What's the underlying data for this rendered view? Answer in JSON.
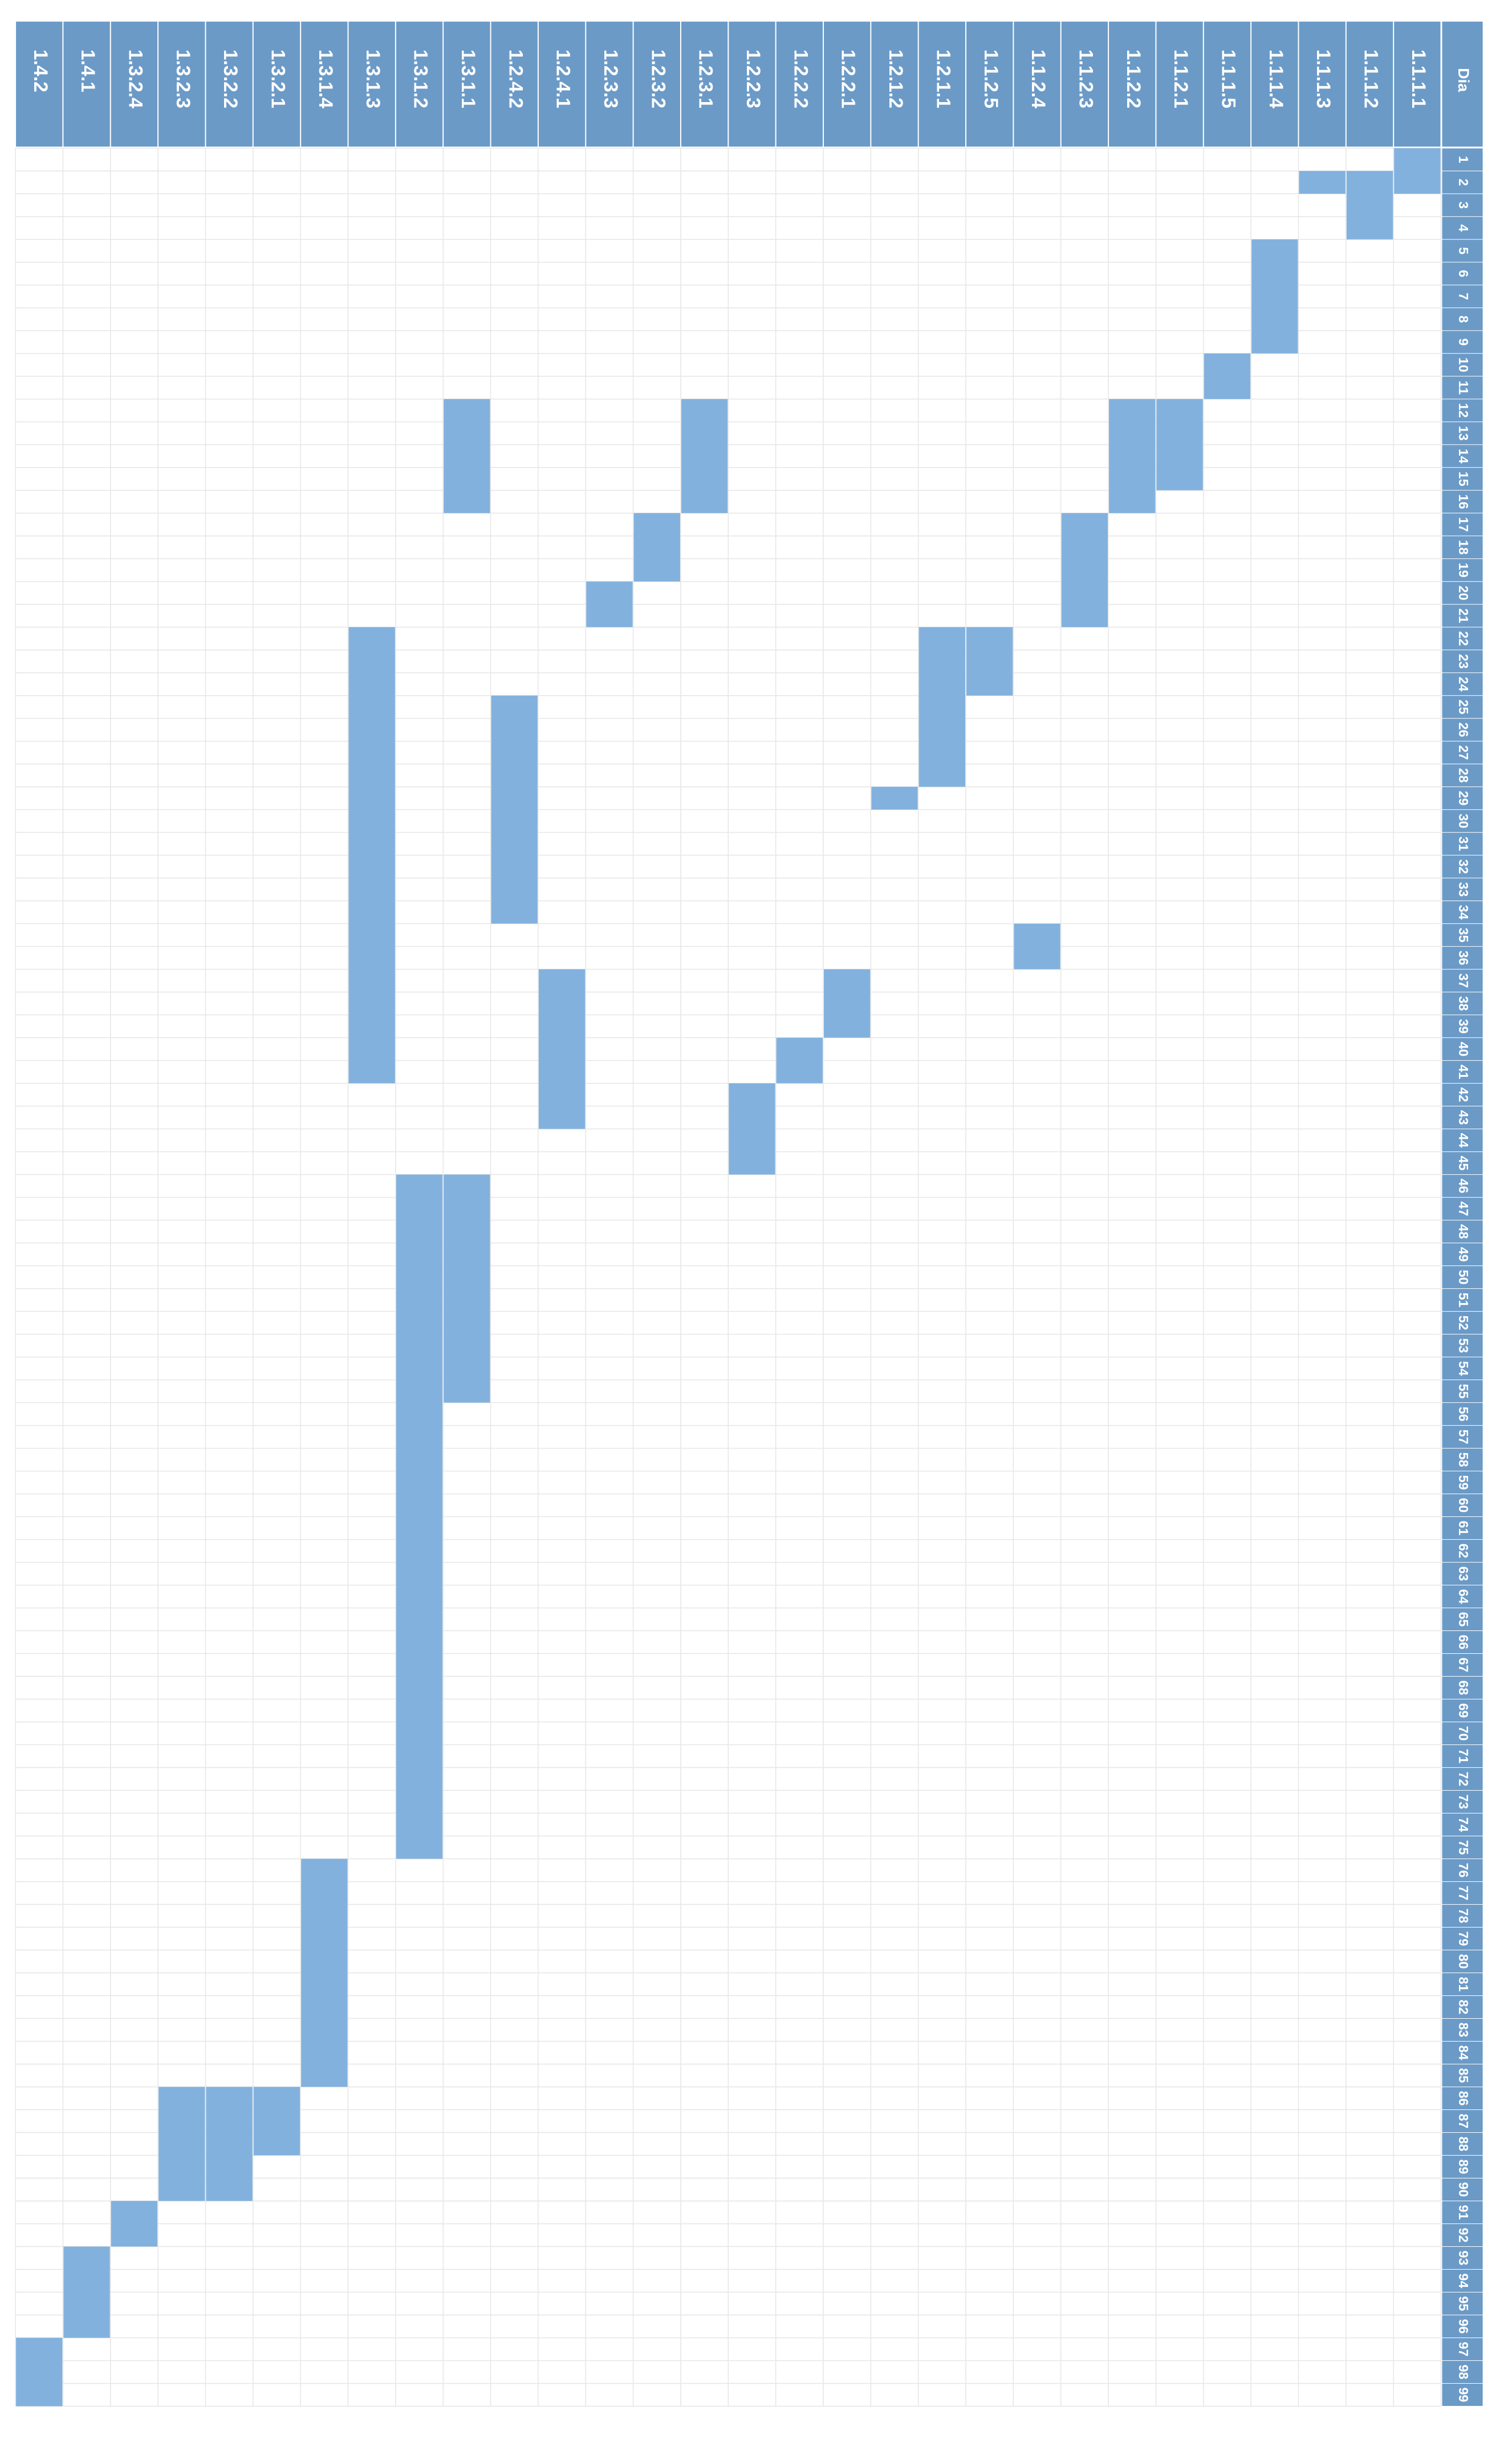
{
  "chart_data": {
    "type": "gantt",
    "orientation": "rotated-90-clockwise",
    "day_label": "Dia",
    "days": [
      "1",
      "2",
      "3",
      "4",
      "5",
      "6",
      "7",
      "8",
      "9",
      "10",
      "11",
      "12",
      "13",
      "14",
      "15",
      "16",
      "17",
      "18",
      "19",
      "20",
      "21",
      "22",
      "23",
      "24",
      "25",
      "26",
      "27",
      "28",
      "29",
      "30",
      "31",
      "32",
      "33",
      "34",
      "35",
      "36",
      "37",
      "38",
      "39",
      "40",
      "41",
      "42",
      "43",
      "44",
      "45",
      "46",
      "47",
      "48",
      "49",
      "50",
      "51",
      "52",
      "53",
      "54",
      "55",
      "56",
      "57",
      "58",
      "59",
      "60",
      "61",
      "62",
      "63",
      "64",
      "65",
      "66",
      "67",
      "68",
      "69",
      "70",
      "71",
      "72",
      "73",
      "74",
      "75",
      "76",
      "77",
      "78",
      "79",
      "80",
      "81",
      "82",
      "83",
      "84",
      "85",
      "86",
      "87",
      "88",
      "89",
      "90",
      "91",
      "92",
      "93",
      "94",
      "95",
      "96",
      "97",
      "98",
      "99"
    ],
    "tasks": [
      {
        "id": "1.1.1.1",
        "start": 1,
        "end": 2
      },
      {
        "id": "1.1.1.2",
        "start": 2,
        "end": 4
      },
      {
        "id": "1.1.1.3",
        "start": 2,
        "end": 2
      },
      {
        "id": "1.1.1.4",
        "start": 5,
        "end": 9
      },
      {
        "id": "1.1.1.5",
        "start": 10,
        "end": 11
      },
      {
        "id": "1.1.2.1",
        "start": 12,
        "end": 15
      },
      {
        "id": "1.1.2.2",
        "start": 12,
        "end": 16
      },
      {
        "id": "1.1.2.3",
        "start": 17,
        "end": 21
      },
      {
        "id": "1.1.2.4",
        "start": 35,
        "end": 36
      },
      {
        "id": "1.1.2.5",
        "start": 22,
        "end": 24
      },
      {
        "id": "1.2.1.1",
        "start": 22,
        "end": 28
      },
      {
        "id": "1.2.1.2",
        "start": 29,
        "end": 29
      },
      {
        "id": "1.2.2.1",
        "start": 37,
        "end": 39
      },
      {
        "id": "1.2.2.2",
        "start": 40,
        "end": 41
      },
      {
        "id": "1.2.2.3",
        "start": 42,
        "end": 45
      },
      {
        "id": "1.2.3.1",
        "start": 12,
        "end": 16
      },
      {
        "id": "1.2.3.2",
        "start": 17,
        "end": 19
      },
      {
        "id": "1.2.3.3",
        "start": 20,
        "end": 21
      },
      {
        "id": "1.2.4.1",
        "start": 37,
        "end": 43
      },
      {
        "id": "1.2.4.2",
        "start": 25,
        "end": 34
      },
      {
        "id": "1.3.1.1",
        "start": 12,
        "end": 16,
        "start2": 46,
        "end2": 55
      },
      {
        "id": "1.3.1.2",
        "start": 46,
        "end": 75
      },
      {
        "id": "1.3.1.3",
        "start": 22,
        "end": 41
      },
      {
        "id": "1.3.1.4",
        "start": 76,
        "end": 85
      },
      {
        "id": "1.3.2.1",
        "start": 86,
        "end": 88
      },
      {
        "id": "1.3.2.2",
        "start": 86,
        "end": 90
      },
      {
        "id": "1.3.2.3",
        "start": 86,
        "end": 90
      },
      {
        "id": "1.3.2.4",
        "start": 91,
        "end": 92
      },
      {
        "id": "1.4.1",
        "start": 93,
        "end": 96
      },
      {
        "id": "1.4.2",
        "start": 97,
        "end": 99
      }
    ],
    "colors": {
      "header": "#6b9ac7",
      "bar": "#82b1de",
      "grid": "#e6e6e6",
      "text": "#ffffff"
    }
  }
}
